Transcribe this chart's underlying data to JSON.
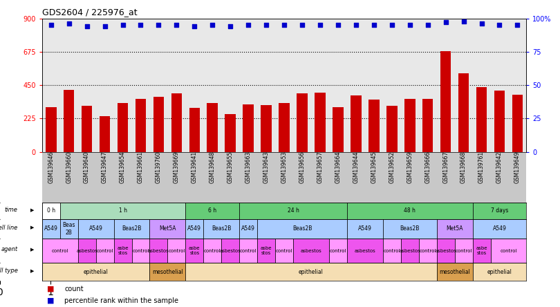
{
  "title": "GDS2604 / 225976_at",
  "samples": [
    "GSM139646",
    "GSM139660",
    "GSM139640",
    "GSM139647",
    "GSM139654",
    "GSM139661",
    "GSM139760",
    "GSM139669",
    "GSM139641",
    "GSM139648",
    "GSM139655",
    "GSM139663",
    "GSM139643",
    "GSM139653",
    "GSM139656",
    "GSM139657",
    "GSM139664",
    "GSM139644",
    "GSM139645",
    "GSM139652",
    "GSM139659",
    "GSM139666",
    "GSM139667",
    "GSM139668",
    "GSM139761",
    "GSM139642",
    "GSM139649"
  ],
  "counts": [
    300,
    420,
    310,
    240,
    330,
    360,
    370,
    395,
    295,
    330,
    255,
    320,
    315,
    330,
    395,
    400,
    300,
    380,
    355,
    310,
    360,
    360,
    680,
    530,
    435,
    415,
    385
  ],
  "percentiles": [
    95,
    96,
    94,
    94,
    95,
    95,
    95,
    95,
    94,
    95,
    94,
    95,
    95,
    95,
    95,
    95,
    95,
    95,
    95,
    95,
    95,
    95,
    97,
    98,
    96,
    95,
    95
  ],
  "bar_color": "#cc0000",
  "dot_color": "#0000cc",
  "ylim_left": [
    0,
    900
  ],
  "ylim_right": [
    0,
    100
  ],
  "yticks_left": [
    0,
    225,
    450,
    675,
    900
  ],
  "yticks_right": [
    0,
    25,
    50,
    75,
    100
  ],
  "hlines": [
    225,
    450,
    675
  ],
  "time_row": [
    {
      "label": "0 h",
      "start": 0,
      "end": 1,
      "color": "#ffffff"
    },
    {
      "label": "1 h",
      "start": 1,
      "end": 8,
      "color": "#aaddbb"
    },
    {
      "label": "6 h",
      "start": 8,
      "end": 11,
      "color": "#66cc77"
    },
    {
      "label": "24 h",
      "start": 11,
      "end": 17,
      "color": "#66cc77"
    },
    {
      "label": "48 h",
      "start": 17,
      "end": 24,
      "color": "#66cc77"
    },
    {
      "label": "7 days",
      "start": 24,
      "end": 27,
      "color": "#66cc77"
    }
  ],
  "cell_line_row": [
    {
      "label": "A549",
      "start": 0,
      "end": 1,
      "color": "#aaccff"
    },
    {
      "label": "Beas\n2B",
      "start": 1,
      "end": 2,
      "color": "#aaccff"
    },
    {
      "label": "A549",
      "start": 2,
      "end": 4,
      "color": "#aaccff"
    },
    {
      "label": "Beas2B",
      "start": 4,
      "end": 6,
      "color": "#aaccff"
    },
    {
      "label": "Met5A",
      "start": 6,
      "end": 8,
      "color": "#cc99ff"
    },
    {
      "label": "A549",
      "start": 8,
      "end": 9,
      "color": "#aaccff"
    },
    {
      "label": "Beas2B",
      "start": 9,
      "end": 11,
      "color": "#aaccff"
    },
    {
      "label": "A549",
      "start": 11,
      "end": 12,
      "color": "#aaccff"
    },
    {
      "label": "Beas2B",
      "start": 12,
      "end": 17,
      "color": "#aaccff"
    },
    {
      "label": "A549",
      "start": 17,
      "end": 19,
      "color": "#aaccff"
    },
    {
      "label": "Beas2B",
      "start": 19,
      "end": 22,
      "color": "#aaccff"
    },
    {
      "label": "Met5A",
      "start": 22,
      "end": 24,
      "color": "#cc99ff"
    },
    {
      "label": "A549",
      "start": 24,
      "end": 27,
      "color": "#aaccff"
    }
  ],
  "agent_row": [
    {
      "label": "control",
      "start": 0,
      "end": 2,
      "color": "#ff99ff"
    },
    {
      "label": "asbestos",
      "start": 2,
      "end": 3,
      "color": "#ee55ee"
    },
    {
      "label": "control",
      "start": 3,
      "end": 4,
      "color": "#ff99ff"
    },
    {
      "label": "asbe\nstos",
      "start": 4,
      "end": 5,
      "color": "#ee55ee"
    },
    {
      "label": "control",
      "start": 5,
      "end": 6,
      "color": "#ff99ff"
    },
    {
      "label": "asbestos",
      "start": 6,
      "end": 7,
      "color": "#ee55ee"
    },
    {
      "label": "control",
      "start": 7,
      "end": 8,
      "color": "#ff99ff"
    },
    {
      "label": "asbe\nstos",
      "start": 8,
      "end": 9,
      "color": "#ee55ee"
    },
    {
      "label": "control",
      "start": 9,
      "end": 10,
      "color": "#ff99ff"
    },
    {
      "label": "asbestos",
      "start": 10,
      "end": 11,
      "color": "#ee55ee"
    },
    {
      "label": "control",
      "start": 11,
      "end": 12,
      "color": "#ff99ff"
    },
    {
      "label": "asbe\nstos",
      "start": 12,
      "end": 13,
      "color": "#ee55ee"
    },
    {
      "label": "control",
      "start": 13,
      "end": 14,
      "color": "#ff99ff"
    },
    {
      "label": "asbestos",
      "start": 14,
      "end": 16,
      "color": "#ee55ee"
    },
    {
      "label": "control",
      "start": 16,
      "end": 17,
      "color": "#ff99ff"
    },
    {
      "label": "asbestos",
      "start": 17,
      "end": 19,
      "color": "#ee55ee"
    },
    {
      "label": "control",
      "start": 19,
      "end": 20,
      "color": "#ff99ff"
    },
    {
      "label": "asbestos",
      "start": 20,
      "end": 21,
      "color": "#ee55ee"
    },
    {
      "label": "control",
      "start": 21,
      "end": 22,
      "color": "#ff99ff"
    },
    {
      "label": "asbestos",
      "start": 22,
      "end": 23,
      "color": "#ee55ee"
    },
    {
      "label": "control",
      "start": 23,
      "end": 24,
      "color": "#ff99ff"
    },
    {
      "label": "asbe\nstos",
      "start": 24,
      "end": 25,
      "color": "#ee55ee"
    },
    {
      "label": "control",
      "start": 25,
      "end": 27,
      "color": "#ff99ff"
    }
  ],
  "cell_type_row": [
    {
      "label": "epithelial",
      "start": 0,
      "end": 6,
      "color": "#f5deb3"
    },
    {
      "label": "mesothelial",
      "start": 6,
      "end": 8,
      "color": "#daa050"
    },
    {
      "label": "epithelial",
      "start": 8,
      "end": 22,
      "color": "#f5deb3"
    },
    {
      "label": "mesothelial",
      "start": 22,
      "end": 24,
      "color": "#daa050"
    },
    {
      "label": "epithelial",
      "start": 24,
      "end": 27,
      "color": "#f5deb3"
    }
  ],
  "row_labels": [
    "time",
    "cell line",
    "agent",
    "cell type"
  ],
  "chart_bg": "#e8e8e8",
  "label_area_bg": "#c8c8c8"
}
